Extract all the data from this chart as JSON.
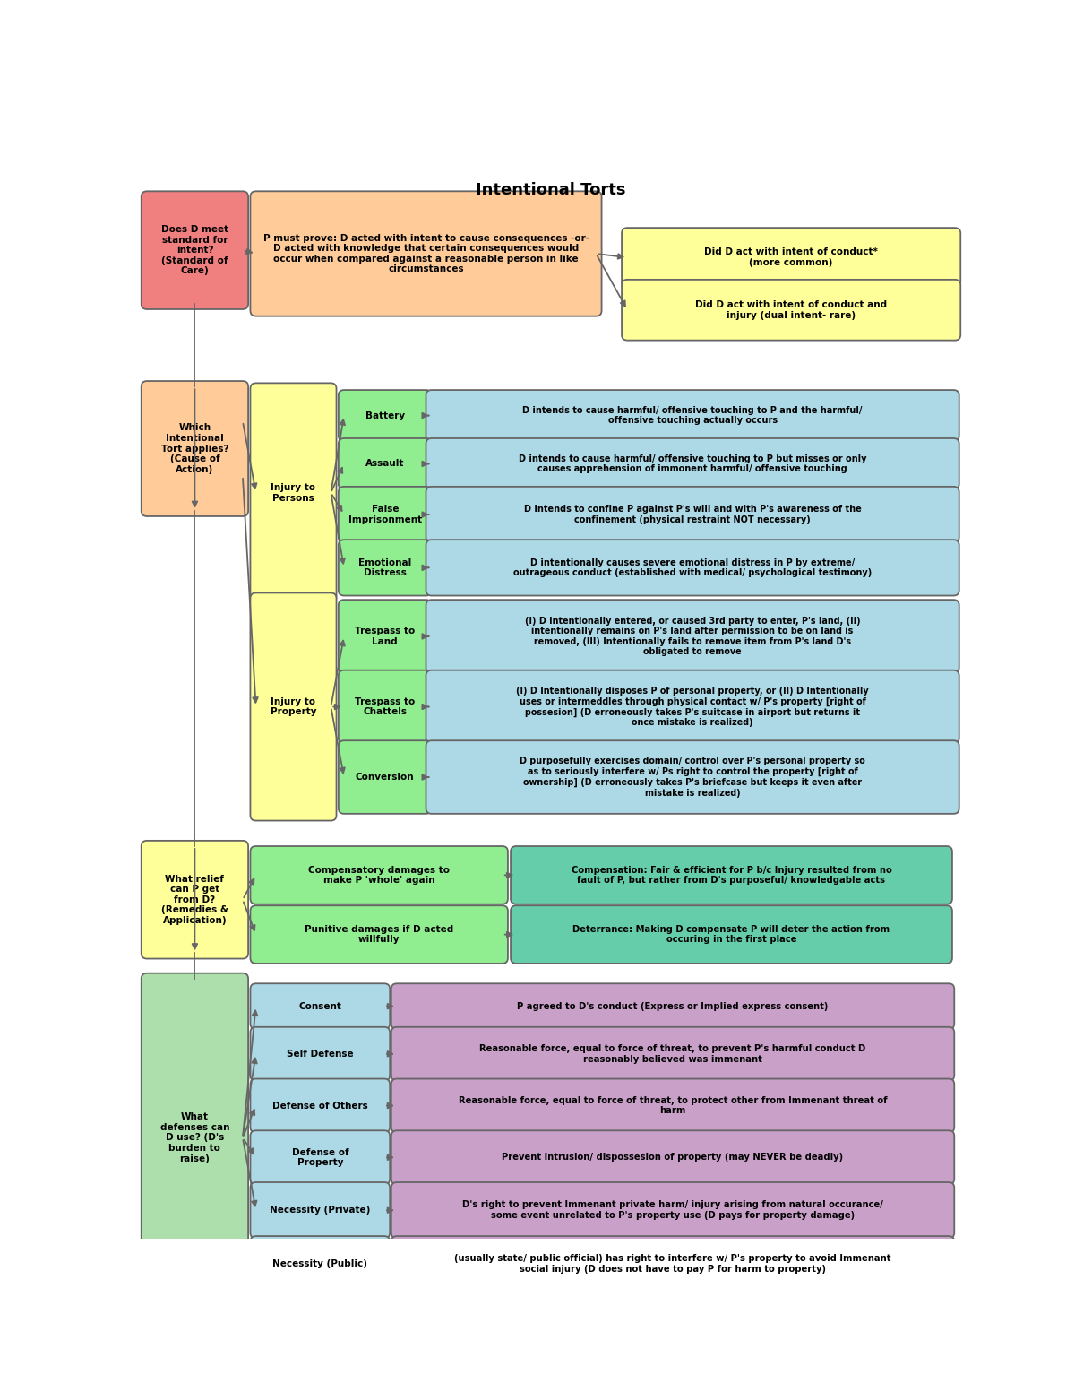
{
  "title": "Intentional Torts",
  "bg_color": "#FFFFFF",
  "s1_left": {
    "text": "Does D meet\nstandard for\nintent?\n(Standard of\nCare)",
    "color": "#F08080"
  },
  "s1_mid": {
    "text": "P must prove: D acted with intent to cause consequences -or-\nD acted with knowledge that certain consequences would\noccur when compared against a reasonable person in like\ncircumstances",
    "color": "#FFCC99"
  },
  "s1_rt": {
    "text": "Did D act with intent of conduct*\n(more common)",
    "color": "#FFFF99"
  },
  "s1_rb": {
    "text": "Did D act with intent of conduct and\ninjury (dual intent- rare)",
    "color": "#FFFF99"
  },
  "s2_left": {
    "text": "Which\nIntentional\nTort applies?\n(Cause of\nAction)",
    "color": "#FFCC99"
  },
  "ip_group": {
    "text": "Injury to\nPersons",
    "color": "#FFFF99"
  },
  "ip_torts": [
    {
      "name": "Battery",
      "desc": "D intends to cause harmful/ offensive touching to P and the harmful/\noffensive touching actually occurs"
    },
    {
      "name": "Assault",
      "desc": "D intends to cause harmful/ offensive touching to P but misses or only\ncauses apprehension of immonent harmful/ offensive touching"
    },
    {
      "name": "False\nImprisonment",
      "desc": "D intends to confine P against P's will and with P's awareness of the\nconfinement (physical restraint NOT necessary)"
    },
    {
      "name": "Emotional\nDistress",
      "desc": "D intentionally causes severe emotional distress in P by extreme/\noutrageous conduct (established with medical/ psychological testimony)"
    }
  ],
  "prop_group": {
    "text": "Injury to\nProperty",
    "color": "#FFFF99"
  },
  "prop_torts": [
    {
      "name": "Trespass to\nLand",
      "desc": "(I) D intentionally entered, or caused 3rd party to enter, P's land, (II)\nintentionally remains on P's land after permission to be on land is\nremoved, (III) Intentionally fails to remove item from P's land D's\nobligated to remove"
    },
    {
      "name": "Trespass to\nChattels",
      "desc": "(I) D Intentionally disposes P of personal property, or (II) D Intentionally\nuses or intermeddles through physical contact w/ P's property [right of\npossesion] (D erroneously takes P's suitcase in airport but returns it\nonce mistake is realized)"
    },
    {
      "name": "Conversion",
      "desc": "D purposefully exercises domain/ control over P's personal property so\nas to seriously interfere w/ Ps right to control the property [right of\nownership] (D erroneously takes P's briefcase but keeps it even after\nmistake is realized)"
    }
  ],
  "s3_left": {
    "text": "What relief\ncan P get\nfrom D?\n(Remedies &\nApplication)",
    "color": "#FFFF99"
  },
  "remedies": [
    {
      "left": "Compensatory damages to\nmake P 'whole' again",
      "right": "Compensation: Fair & efficient for P b/c Injury resulted from no\nfault of P, but rather from D's purposeful/ knowledgable acts",
      "color_left": "#90EE90",
      "color_right": "#66CDAA"
    },
    {
      "left": "Punitive damages if D acted\nwillfully",
      "right": "Deterrance: Making D compensate P will deter the action from\noccuring in the first place",
      "color_left": "#90EE90",
      "color_right": "#66CDAA"
    }
  ],
  "s4_left": {
    "text": "What\ndefenses can\nD use? (D's\nburden to\nraise)",
    "color": "#ADDFAD"
  },
  "defenses": [
    {
      "name": "Consent",
      "name_suffix": "",
      "desc": "P agreed to D's conduct (Express or Implied express consent)"
    },
    {
      "name": "Self Defense",
      "name_suffix": "",
      "desc": "Reasonable force, equal to force of threat, to prevent P's harmful conduct D\nreasonably believed was immenant"
    },
    {
      "name": "Defense of Others",
      "name_suffix": "",
      "desc": "Reasonable force, equal to force of threat, to protect other from Immenant threat of\nharm"
    },
    {
      "name": "Defense of\nProperty",
      "name_suffix": "",
      "desc": "Prevent intrusion/ dispossesion of property (may NEVER be deadly)"
    },
    {
      "name": "Necessity",
      "name_suffix": " (Private)",
      "desc": "D's right to prevent Immenant private harm/ injury arising from natural occurance/\nsome event unrelated to P's property use (D pays for property damage)"
    },
    {
      "name": "Necessity",
      "name_suffix": " (Public)",
      "desc": "(usually state/ public official) has right to interfere w/ P's property to avoid Immenant\nsocial injury (D does not have to pay P for harm to property)"
    }
  ],
  "def_name_color": "#ADD8E6",
  "def_desc_color": "#C8A0C8",
  "tort_name_color": "#90EE90",
  "tort_desc_color": "#ADD8E6"
}
